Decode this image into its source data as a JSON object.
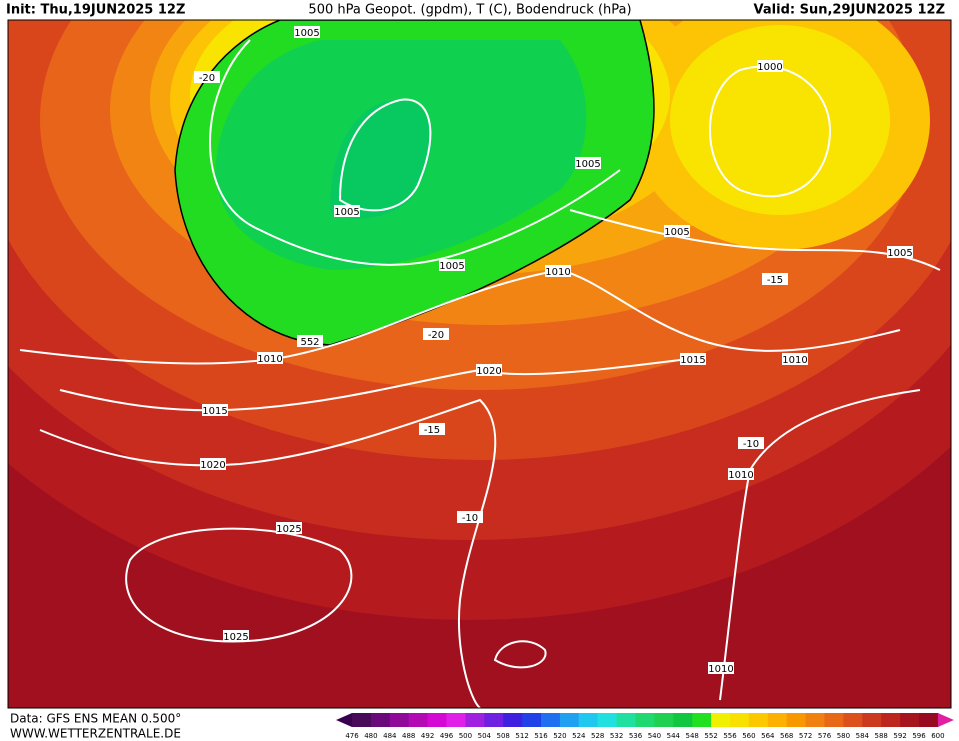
{
  "header": {
    "init": "Init: Thu,19JUN2025 12Z",
    "title": "500 hPa Geopot. (gpdm), T (C), Bodendruck (hPa)",
    "valid": "Valid: Sun,29JUN2025 12Z"
  },
  "map_labels": [
    "1005",
    "-20",
    "1000",
    "1005",
    "1005",
    "1005",
    "1005",
    "1010",
    "-15",
    "1005",
    "552",
    "-20",
    "1010",
    "1015",
    "1010",
    "1020",
    "1015",
    "-15",
    "-10",
    "1020",
    "1010",
    "-10",
    "1025",
    "1025",
    "1010"
  ],
  "colorbar": {
    "labels": [
      476,
      480,
      484,
      488,
      492,
      496,
      500,
      504,
      508,
      512,
      516,
      520,
      524,
      528,
      532,
      536,
      540,
      544,
      548,
      552,
      556,
      560,
      564,
      568,
      572,
      576,
      580,
      584,
      588,
      592,
      596,
      600
    ]
  },
  "footer": {
    "data": "Data: GFS ENS MEAN 0.500°",
    "site": "WWW.WETTERZENTRALE.DE"
  }
}
